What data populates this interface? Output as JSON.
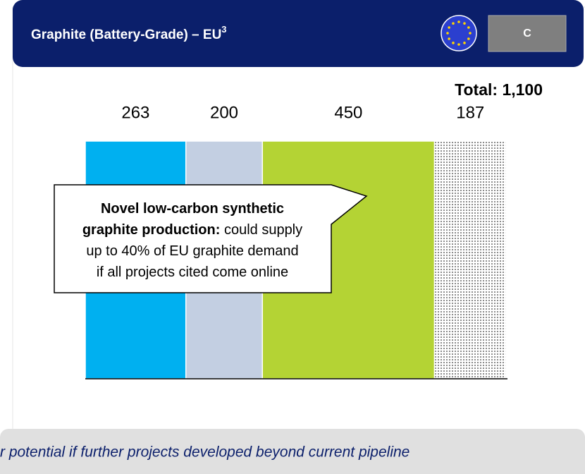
{
  "chart_data": {
    "type": "stacked-bar",
    "title": "Graphite (Battery-Grade) – EU",
    "title_superscript": "3",
    "badge": "C",
    "total_label": "Total: 1,100",
    "values": [
      263,
      200,
      450,
      187
    ],
    "colors": [
      "#00b0f0",
      "#c3cfe2",
      "#b4d334",
      "dots"
    ],
    "callout_lines": [
      [
        {
          "text": "Novel low-carbon synthetic",
          "bold": true
        }
      ],
      [
        {
          "text": "graphite production:",
          "bold": true
        },
        {
          "text": " could supply",
          "bold": false
        }
      ],
      [
        {
          "text": "up to 40% of EU graphite demand",
          "bold": false
        }
      ],
      [
        {
          "text": "if all projects cited come online",
          "bold": false
        }
      ]
    ],
    "footer": "r potential if further projects developed beyond current pipeline"
  }
}
